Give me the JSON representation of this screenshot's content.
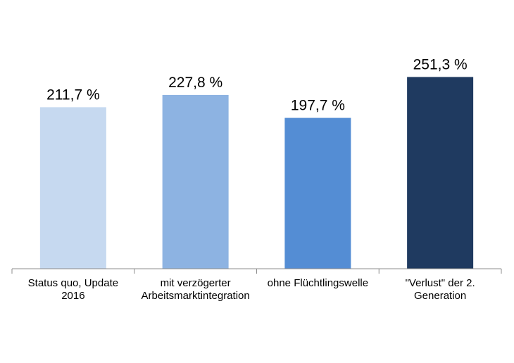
{
  "chart_data": {
    "type": "bar",
    "categories": [
      [
        "Status quo, Update",
        "2016"
      ],
      [
        "mit verzögerter",
        "Arbeitsmarktintegration"
      ],
      [
        "ohne Flüchtlingswelle"
      ],
      [
        "\"Verlust\" der 2.",
        "Generation"
      ]
    ],
    "values": [
      211.7,
      227.8,
      197.7,
      251.3
    ],
    "data_labels": [
      "211,7 %",
      "227,8 %",
      "197,7 %",
      "251,3 %"
    ],
    "colors": [
      "#c6d9f0",
      "#8db3e2",
      "#548dd4",
      "#1f3a60"
    ],
    "title": "",
    "xlabel": "",
    "ylabel": "",
    "ylim": [
      0,
      260
    ],
    "grid": false,
    "legend": "none"
  }
}
